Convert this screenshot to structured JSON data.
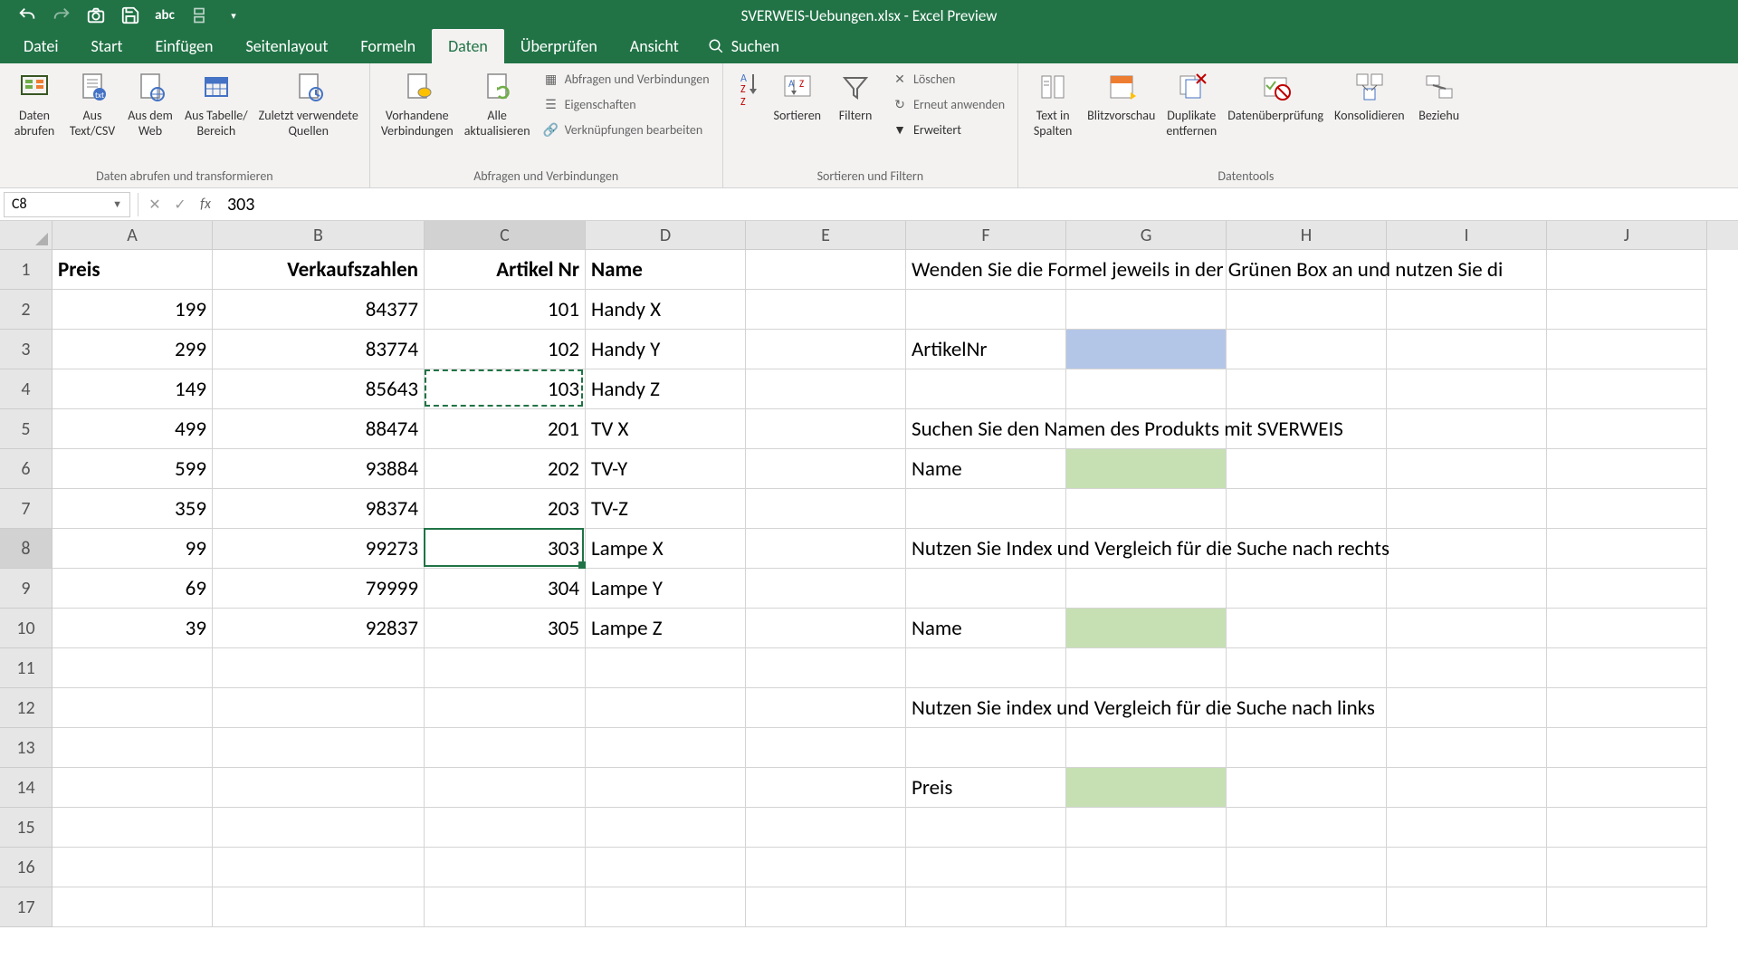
{
  "title": "SVERWEIS-Uebungen.xlsx - Excel Preview",
  "tabs": [
    "Datei",
    "Start",
    "Einfügen",
    "Seitenlayout",
    "Formeln",
    "Daten",
    "Überprüfen",
    "Ansicht"
  ],
  "active_tab": 5,
  "search_placeholder": "Suchen",
  "ribbon": {
    "group1": {
      "label": "Daten abrufen und transformieren",
      "items": [
        "Daten\nabrufen",
        "Aus\nText/CSV",
        "Aus dem\nWeb",
        "Aus Tabelle/\nBereich",
        "Zuletzt verwendete\nQuellen"
      ]
    },
    "group2": {
      "label": "Abfragen und Verbindungen",
      "big": [
        "Vorhandene\nVerbindungen",
        "Alle\naktualisieren"
      ],
      "small": [
        "Abfragen und Verbindungen",
        "Eigenschaften",
        "Verknüpfungen bearbeiten"
      ]
    },
    "group3": {
      "label": "Sortieren und Filtern",
      "big": [
        "Sortieren",
        "Filtern"
      ],
      "small": [
        "Löschen",
        "Erneut anwenden",
        "Erweitert"
      ]
    },
    "group4": {
      "label": "Datentools",
      "items": [
        "Text in\nSpalten",
        "Blitzvorschau",
        "Duplikate\nentfernen",
        "Datenüberprüfung",
        "Konsolidieren",
        "Beziehu"
      ]
    }
  },
  "name_box": "C8",
  "formula_value": "303",
  "columns": [
    "A",
    "B",
    "C",
    "D",
    "E",
    "F",
    "G",
    "H",
    "I",
    "J"
  ],
  "col_widths": {
    "A": 177,
    "B": 234,
    "C": 178,
    "D": 177,
    "E": 177,
    "F": 177,
    "G": 177,
    "H": 177,
    "I": 177,
    "J": 177
  },
  "row_count": 17,
  "active_row": 8,
  "active_col": "C",
  "marquee_cell": {
    "row": 4,
    "col": "C"
  },
  "selected_cell": {
    "row": 8,
    "col": "C"
  },
  "headers_row1": {
    "A": "Preis",
    "B": "Verkaufszahlen",
    "C": "Artikel Nr",
    "D": "Name"
  },
  "data_rows": [
    {
      "A": "199",
      "B": "84377",
      "C": "101",
      "D": "Handy X"
    },
    {
      "A": "299",
      "B": "83774",
      "C": "102",
      "D": "Handy Y"
    },
    {
      "A": "149",
      "B": "85643",
      "C": "103",
      "D": "Handy Z"
    },
    {
      "A": "499",
      "B": "88474",
      "C": "201",
      "D": "TV X"
    },
    {
      "A": "599",
      "B": "93884",
      "C": "202",
      "D": "TV-Y"
    },
    {
      "A": "359",
      "B": "98374",
      "C": "203",
      "D": "TV-Z"
    },
    {
      "A": "99",
      "B": "99273",
      "C": "303",
      "D": "Lampe X"
    },
    {
      "A": "69",
      "B": "79999",
      "C": "304",
      "D": "Lampe Y"
    },
    {
      "A": "39",
      "B": "92837",
      "C": "305",
      "D": "Lampe Z"
    }
  ],
  "f_texts": {
    "1": "Wenden Sie die Formel jeweils in der Grünen Box an und nutzen Sie di",
    "3": "ArtikelNr",
    "5": "Suchen Sie den Namen des Produkts mit SVERWEIS",
    "6": "Name",
    "8": "Nutzen Sie Index und Vergleich für die Suche nach rechts",
    "10": "Name",
    "12": "Nutzen Sie index und Vergleich für die Suche nach links",
    "14": "Preis"
  },
  "fill_cells": {
    "G3": "blue-fill",
    "G6": "green-fill",
    "G10": "green-fill",
    "G14": "green-fill"
  },
  "colors": {
    "excel_green": "#217346",
    "ribbon_bg": "#f3f2f1",
    "blue_fill": "#b4c6e7",
    "green_fill": "#c6e0b4",
    "grid_border": "#d4d4d4",
    "header_bg": "#e6e6e6"
  }
}
